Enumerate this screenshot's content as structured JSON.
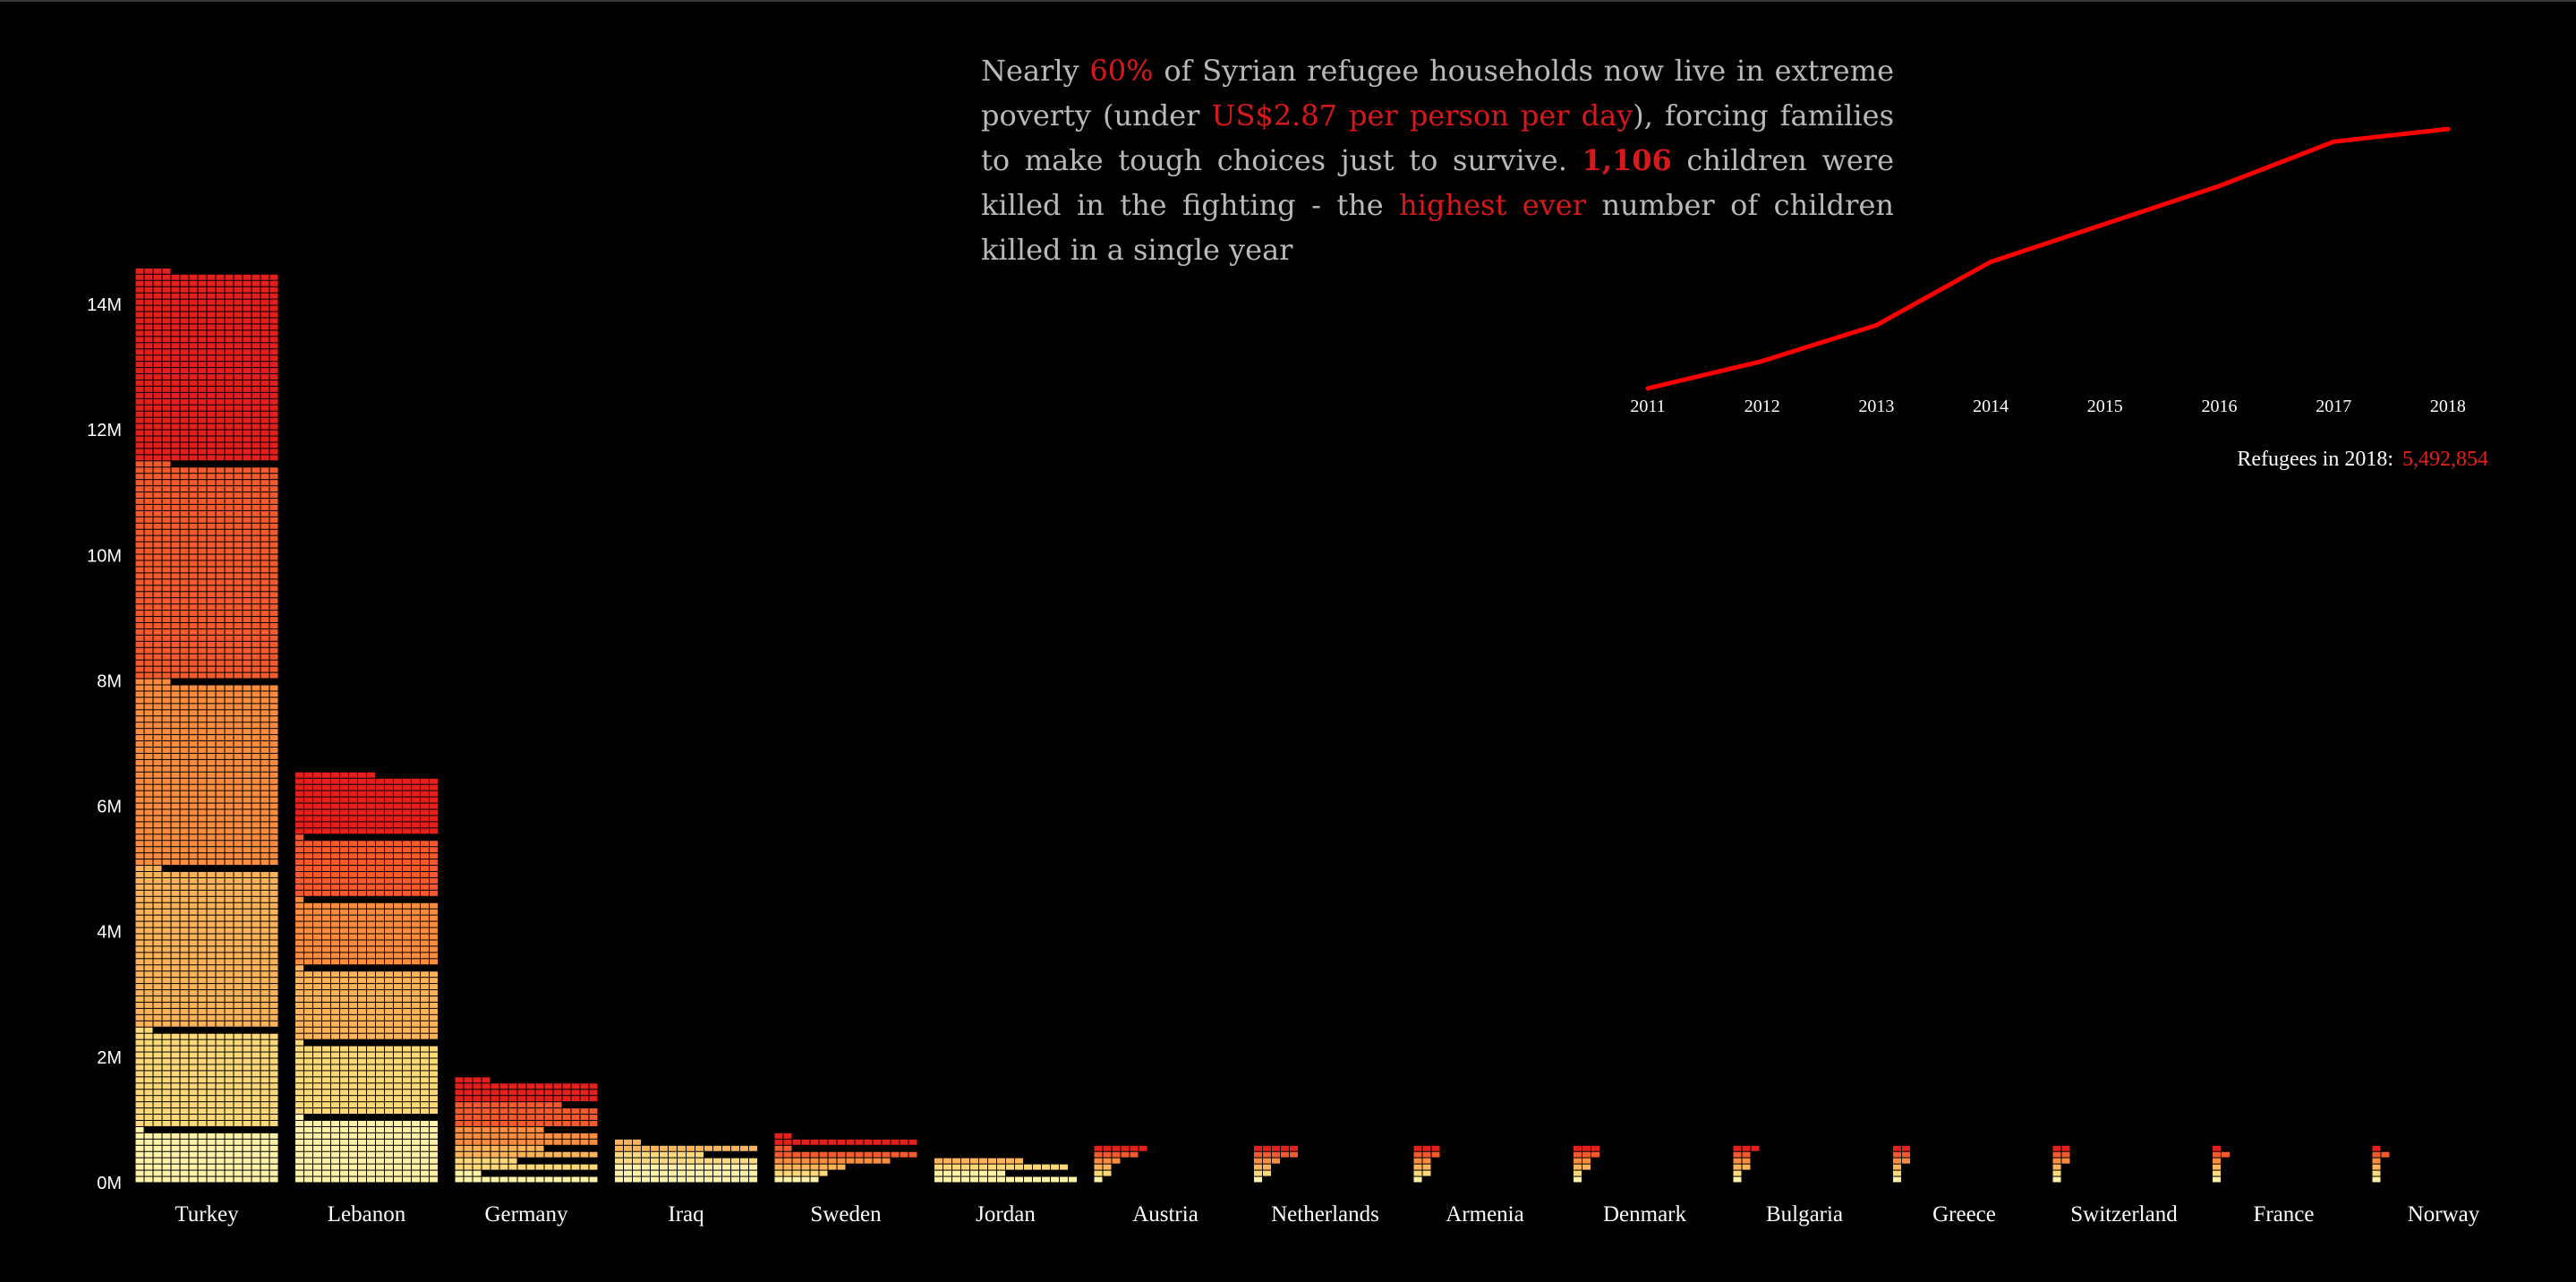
{
  "story": {
    "p1": "Nearly ",
    "h1": "60%",
    "p2": " of Syrian refugee households now live in extreme poverty (under ",
    "h2": "US$2.87 per person per day",
    "p3": "), forcing families to make tough choices just to survive. ",
    "h3": "1,106",
    "p4": " children were killed in the fighting - the ",
    "h4": "highest ever",
    "p5": " number of children killed in a single year"
  },
  "refugees_total": {
    "label": "Refugees in 2018:",
    "value": "5,492,854"
  },
  "colors": {
    "palette": [
      "#fff2a8",
      "#fed979",
      "#fdb35a",
      "#fc8d3f",
      "#f35a2c",
      "#e3201b",
      "#c20d24"
    ],
    "line": "#ff0000"
  },
  "chart_data": [
    {
      "type": "bar",
      "stacked": true,
      "categories": [
        "Turkey",
        "Lebanon",
        "Germany",
        "Iraq",
        "Sweden",
        "Jordan",
        "Austria",
        "Netherlands",
        "Armenia",
        "Denmark",
        "Bulgaria",
        "Greece",
        "Switzerland",
        "France",
        "Norway"
      ],
      "series": [
        {
          "values": [
            800000,
            1000000,
            120000,
            300000,
            30000,
            150000,
            8000,
            6000,
            8000,
            6000,
            5000,
            5000,
            5000,
            4000,
            4000
          ]
        },
        {
          "values": [
            1500000,
            1100000,
            140000,
            160000,
            40000,
            90000,
            12000,
            10000,
            10000,
            8000,
            7000,
            6000,
            6000,
            5000,
            5000
          ]
        },
        {
          "values": [
            2500000,
            1100000,
            160000,
            120000,
            50000,
            60000,
            15000,
            14000,
            12000,
            10000,
            10000,
            9000,
            8000,
            7000,
            6000
          ]
        },
        {
          "values": [
            2900000,
            1000000,
            260000,
            0,
            80000,
            0,
            20000,
            20000,
            15000,
            14000,
            13000,
            12000,
            10000,
            8000,
            8000
          ]
        },
        {
          "values": [
            3400000,
            900000,
            370000,
            0,
            110000,
            0,
            30000,
            30000,
            20000,
            20000,
            15000,
            14000,
            12000,
            10000,
            10000
          ]
        },
        {
          "values": [
            3000000,
            950000,
            320000,
            0,
            110000,
            0,
            40000,
            30000,
            20000,
            20000,
            20000,
            14000,
            10000,
            8000,
            8000
          ]
        }
      ],
      "y_ticks": [
        "0M",
        "2M",
        "4M",
        "6M",
        "8M",
        "10M",
        "12M",
        "14M"
      ],
      "ylim": [
        0,
        15000000
      ],
      "grid": false
    },
    {
      "type": "line",
      "x": [
        "2011",
        "2012",
        "2013",
        "2014",
        "2015",
        "2016",
        "2017",
        "2018"
      ],
      "y": [
        300000,
        730000,
        1300000,
        2300000,
        2900000,
        3500000,
        4200000,
        4400000
      ],
      "grid": false
    }
  ]
}
